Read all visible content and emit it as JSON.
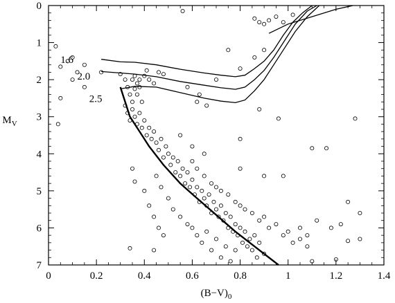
{
  "chart_data": {
    "type": "scatter",
    "xlabel": "(B−V)",
    "xlabel_sub": "0",
    "ylabel": "M",
    "ylabel_sub": "V",
    "xlim": [
      0,
      1.4
    ],
    "ylim": [
      7,
      0
    ],
    "y_inverted": true,
    "xticks": [
      "0",
      "0.2",
      "0.4",
      "0.6",
      "0.8",
      "1",
      "1.2",
      "1.4"
    ],
    "xtick_values": [
      0,
      0.2,
      0.4,
      0.6,
      0.8,
      1.0,
      1.2,
      1.4
    ],
    "yticks": [
      "0",
      "1",
      "2",
      "3",
      "4",
      "5",
      "6",
      "7"
    ],
    "ytick_values": [
      0,
      1,
      2,
      3,
      4,
      5,
      6,
      7
    ],
    "grid": false,
    "isochrones": [
      {
        "label": "1.6",
        "points": [
          [
            0.22,
            1.45
          ],
          [
            0.3,
            1.52
          ],
          [
            0.36,
            1.53
          ],
          [
            0.45,
            1.6
          ],
          [
            0.55,
            1.72
          ],
          [
            0.65,
            1.82
          ],
          [
            0.72,
            1.88
          ],
          [
            0.78,
            1.92
          ],
          [
            0.82,
            1.88
          ],
          [
            0.86,
            1.7
          ],
          [
            0.9,
            1.5
          ],
          [
            0.94,
            1.2
          ],
          [
            0.98,
            0.8
          ],
          [
            1.02,
            0.45
          ],
          [
            1.06,
            0.2
          ],
          [
            1.1,
            0.0
          ]
        ]
      },
      {
        "label": "2.0",
        "points": [
          [
            0.22,
            1.78
          ],
          [
            0.3,
            1.82
          ],
          [
            0.36,
            1.85
          ],
          [
            0.45,
            1.92
          ],
          [
            0.55,
            2.05
          ],
          [
            0.65,
            2.15
          ],
          [
            0.72,
            2.22
          ],
          [
            0.78,
            2.26
          ],
          [
            0.82,
            2.2
          ],
          [
            0.86,
            2.0
          ],
          [
            0.9,
            1.75
          ],
          [
            0.94,
            1.4
          ],
          [
            0.98,
            1.0
          ],
          [
            1.03,
            0.5
          ],
          [
            1.08,
            0.15
          ],
          [
            1.12,
            0.0
          ]
        ]
      },
      {
        "label": "2.5",
        "points": [
          [
            0.3,
            2.25
          ],
          [
            0.36,
            2.18
          ],
          [
            0.45,
            2.2
          ],
          [
            0.55,
            2.35
          ],
          [
            0.65,
            2.5
          ],
          [
            0.72,
            2.58
          ],
          [
            0.78,
            2.62
          ],
          [
            0.82,
            2.55
          ],
          [
            0.86,
            2.3
          ],
          [
            0.9,
            2.0
          ],
          [
            0.94,
            1.6
          ],
          [
            0.98,
            1.2
          ],
          [
            1.03,
            0.7
          ],
          [
            1.08,
            0.3
          ],
          [
            1.13,
            0.0
          ]
        ]
      }
    ],
    "isochrone_label_positions": [
      [
        0.05,
        1.55
      ],
      [
        0.12,
        2.0
      ],
      [
        0.17,
        2.6
      ]
    ],
    "main_sequence": [
      [
        0.3,
        2.2
      ],
      [
        0.32,
        2.6
      ],
      [
        0.34,
        3.0
      ],
      [
        0.38,
        3.4
      ],
      [
        0.42,
        3.8
      ],
      [
        0.48,
        4.3
      ],
      [
        0.55,
        4.8
      ],
      [
        0.62,
        5.2
      ],
      [
        0.7,
        5.65
      ],
      [
        0.78,
        6.1
      ],
      [
        0.86,
        6.5
      ],
      [
        0.96,
        7.0
      ]
    ],
    "giant_branch_tail": [
      [
        0.92,
        0.75
      ],
      [
        1.0,
        0.5
      ],
      [
        1.1,
        0.3
      ],
      [
        1.2,
        0.1
      ],
      [
        1.27,
        0.0
      ]
    ],
    "stars": [
      [
        0.03,
        1.1
      ],
      [
        0.05,
        1.65
      ],
      [
        0.08,
        1.5
      ],
      [
        0.1,
        1.4
      ],
      [
        0.1,
        2.0
      ],
      [
        0.12,
        1.8
      ],
      [
        0.15,
        1.6
      ],
      [
        0.15,
        2.2
      ],
      [
        0.05,
        2.5
      ],
      [
        0.04,
        3.2
      ],
      [
        0.22,
        1.8
      ],
      [
        0.3,
        1.85
      ],
      [
        0.32,
        2.0
      ],
      [
        0.33,
        2.2
      ],
      [
        0.34,
        2.4
      ],
      [
        0.35,
        2.6
      ],
      [
        0.35,
        2.0
      ],
      [
        0.36,
        2.25
      ],
      [
        0.36,
        1.9
      ],
      [
        0.37,
        2.1
      ],
      [
        0.37,
        2.4
      ],
      [
        0.38,
        2.2
      ],
      [
        0.38,
        2.0
      ],
      [
        0.39,
        2.6
      ],
      [
        0.4,
        1.9
      ],
      [
        0.41,
        1.75
      ],
      [
        0.42,
        2.0
      ],
      [
        0.44,
        2.1
      ],
      [
        0.46,
        1.8
      ],
      [
        0.48,
        1.85
      ],
      [
        0.32,
        2.7
      ],
      [
        0.33,
        2.9
      ],
      [
        0.34,
        3.1
      ],
      [
        0.35,
        2.8
      ],
      [
        0.36,
        3.0
      ],
      [
        0.37,
        3.2
      ],
      [
        0.38,
        2.9
      ],
      [
        0.39,
        3.3
      ],
      [
        0.4,
        3.1
      ],
      [
        0.41,
        3.5
      ],
      [
        0.42,
        3.3
      ],
      [
        0.43,
        3.6
      ],
      [
        0.44,
        3.4
      ],
      [
        0.45,
        3.7
      ],
      [
        0.46,
        3.9
      ],
      [
        0.47,
        3.6
      ],
      [
        0.48,
        4.1
      ],
      [
        0.49,
        3.8
      ],
      [
        0.5,
        4.0
      ],
      [
        0.51,
        4.3
      ],
      [
        0.52,
        4.1
      ],
      [
        0.53,
        4.5
      ],
      [
        0.54,
        4.2
      ],
      [
        0.55,
        4.6
      ],
      [
        0.56,
        4.4
      ],
      [
        0.57,
        4.8
      ],
      [
        0.58,
        4.5
      ],
      [
        0.59,
        4.9
      ],
      [
        0.6,
        4.7
      ],
      [
        0.61,
        5.1
      ],
      [
        0.62,
        4.9
      ],
      [
        0.63,
        5.3
      ],
      [
        0.64,
        5.0
      ],
      [
        0.65,
        5.2
      ],
      [
        0.66,
        5.4
      ],
      [
        0.67,
        5.1
      ],
      [
        0.68,
        5.6
      ],
      [
        0.69,
        5.3
      ],
      [
        0.7,
        5.5
      ],
      [
        0.71,
        5.7
      ],
      [
        0.72,
        5.4
      ],
      [
        0.73,
        5.8
      ],
      [
        0.74,
        5.6
      ],
      [
        0.75,
        6.0
      ],
      [
        0.76,
        5.7
      ],
      [
        0.77,
        6.1
      ],
      [
        0.78,
        5.9
      ],
      [
        0.79,
        6.2
      ],
      [
        0.8,
        6.0
      ],
      [
        0.81,
        6.4
      ],
      [
        0.82,
        6.1
      ],
      [
        0.83,
        6.5
      ],
      [
        0.84,
        6.3
      ],
      [
        0.85,
        6.6
      ],
      [
        0.86,
        6.2
      ],
      [
        0.87,
        6.8
      ],
      [
        0.88,
        6.4
      ],
      [
        0.9,
        6.7
      ],
      [
        0.45,
        4.6
      ],
      [
        0.47,
        4.9
      ],
      [
        0.5,
        5.2
      ],
      [
        0.52,
        5.5
      ],
      [
        0.55,
        5.7
      ],
      [
        0.58,
        5.9
      ],
      [
        0.6,
        6.0
      ],
      [
        0.62,
        6.2
      ],
      [
        0.64,
        6.4
      ],
      [
        0.66,
        6.1
      ],
      [
        0.68,
        6.6
      ],
      [
        0.7,
        6.3
      ],
      [
        0.72,
        6.8
      ],
      [
        0.74,
        6.5
      ],
      [
        0.76,
        6.9
      ],
      [
        0.78,
        6.6
      ],
      [
        0.6,
        4.2
      ],
      [
        0.62,
        4.4
      ],
      [
        0.65,
        4.6
      ],
      [
        0.68,
        4.8
      ],
      [
        0.7,
        4.9
      ],
      [
        0.72,
        5.0
      ],
      [
        0.75,
        5.1
      ],
      [
        0.78,
        5.3
      ],
      [
        0.8,
        5.4
      ],
      [
        0.82,
        5.5
      ],
      [
        0.85,
        5.6
      ],
      [
        0.88,
        5.8
      ],
      [
        0.9,
        5.7
      ],
      [
        0.92,
        6.0
      ],
      [
        0.95,
        5.9
      ],
      [
        0.98,
        6.2
      ],
      [
        1.0,
        6.1
      ],
      [
        1.02,
        6.4
      ],
      [
        1.05,
        6.3
      ],
      [
        1.08,
        6.5
      ],
      [
        0.55,
        3.5
      ],
      [
        0.6,
        3.8
      ],
      [
        0.65,
        4.0
      ],
      [
        0.8,
        4.4
      ],
      [
        0.9,
        4.6
      ],
      [
        0.8,
        3.6
      ],
      [
        0.88,
        2.8
      ],
      [
        0.62,
        2.6
      ],
      [
        0.35,
        4.4
      ],
      [
        0.36,
        4.75
      ],
      [
        0.4,
        5.0
      ],
      [
        0.42,
        5.4
      ],
      [
        0.44,
        5.7
      ],
      [
        0.46,
        6.0
      ],
      [
        0.48,
        6.2
      ],
      [
        0.34,
        6.55
      ],
      [
        0.44,
        6.6
      ],
      [
        1.1,
        3.85
      ],
      [
        1.16,
        3.85
      ],
      [
        1.28,
        3.05
      ],
      [
        1.25,
        5.3
      ],
      [
        1.3,
        5.6
      ],
      [
        1.22,
        5.9
      ],
      [
        1.18,
        6.0
      ],
      [
        1.25,
        6.35
      ],
      [
        1.3,
        6.3
      ],
      [
        1.2,
        6.85
      ],
      [
        1.1,
        6.9
      ],
      [
        1.05,
        6.0
      ],
      [
        1.08,
        6.2
      ],
      [
        1.12,
        5.8
      ],
      [
        0.98,
        4.6
      ],
      [
        0.96,
        3.05
      ],
      [
        0.56,
        0.15
      ],
      [
        0.75,
        1.2
      ],
      [
        0.8,
        1.7
      ],
      [
        0.86,
        0.35
      ],
      [
        0.88,
        0.45
      ],
      [
        0.9,
        0.5
      ],
      [
        0.92,
        0.4
      ],
      [
        0.95,
        0.3
      ],
      [
        0.98,
        0.45
      ],
      [
        1.02,
        0.25
      ],
      [
        0.66,
        2.7
      ],
      [
        0.7,
        2.0
      ],
      [
        0.58,
        2.2
      ],
      [
        0.63,
        2.4
      ],
      [
        0.86,
        1.4
      ],
      [
        0.9,
        1.2
      ]
    ]
  }
}
